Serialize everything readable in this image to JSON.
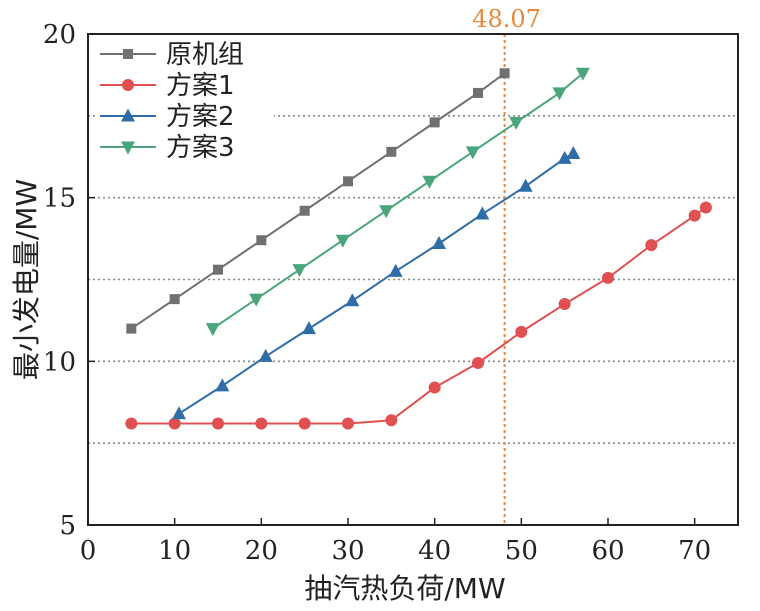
{
  "chart_data": {
    "type": "line",
    "title": "",
    "xlabel": "抽汽热负荷/MW",
    "ylabel": "最小发电量/MW",
    "xlim": [
      0,
      75
    ],
    "ylim": [
      5,
      20
    ],
    "x_ticks": [
      0,
      10,
      20,
      30,
      40,
      50,
      60,
      70
    ],
    "x_tick_labels": [
      "0",
      "10",
      "20",
      "30",
      "40",
      "50",
      "60",
      "70"
    ],
    "y_ticks": [
      5,
      10,
      15,
      20
    ],
    "y_tick_labels": [
      "5",
      "10",
      "15",
      "20"
    ],
    "grid": {
      "axis": "y",
      "style": "dotted",
      "values": [
        7.5,
        10,
        12.5,
        15,
        17.5
      ]
    },
    "legend_position": "top-left",
    "reference_line": {
      "x": 48.07,
      "label": "48.07",
      "color": "#E8893A"
    },
    "series": [
      {
        "name": "原机组",
        "color": "#707070",
        "marker": "square",
        "x": [
          5,
          10,
          15,
          20,
          25,
          30,
          35,
          40,
          45,
          48.07
        ],
        "y": [
          11.0,
          11.9,
          12.8,
          13.7,
          14.6,
          15.5,
          16.4,
          17.3,
          18.2,
          18.8
        ]
      },
      {
        "name": "方案1",
        "color": "#E05050",
        "marker": "circle",
        "x": [
          5,
          10,
          15,
          20,
          25,
          30,
          35,
          40,
          45,
          50,
          55,
          60,
          65,
          70,
          71.3
        ],
        "y": [
          8.1,
          8.1,
          8.1,
          8.1,
          8.1,
          8.1,
          8.2,
          9.2,
          9.95,
          10.9,
          11.75,
          12.55,
          13.55,
          14.45,
          14.7
        ]
      },
      {
        "name": "方案2",
        "color": "#2E6DA8",
        "marker": "triangle-up",
        "x": [
          10.5,
          15.5,
          20.5,
          25.5,
          30.5,
          35.5,
          40.5,
          45.5,
          50.5,
          55,
          56
        ],
        "y": [
          8.4,
          9.25,
          10.15,
          11.0,
          11.85,
          12.75,
          13.6,
          14.5,
          15.35,
          16.2,
          16.35
        ]
      },
      {
        "name": "方案3",
        "color": "#4AA67A",
        "marker": "triangle-down",
        "x": [
          14.4,
          19.4,
          24.4,
          29.4,
          34.4,
          39.4,
          44.4,
          49.4,
          54.4,
          57.1
        ],
        "y": [
          11.0,
          11.9,
          12.8,
          13.7,
          14.6,
          15.5,
          16.4,
          17.3,
          18.2,
          18.8
        ]
      }
    ]
  }
}
